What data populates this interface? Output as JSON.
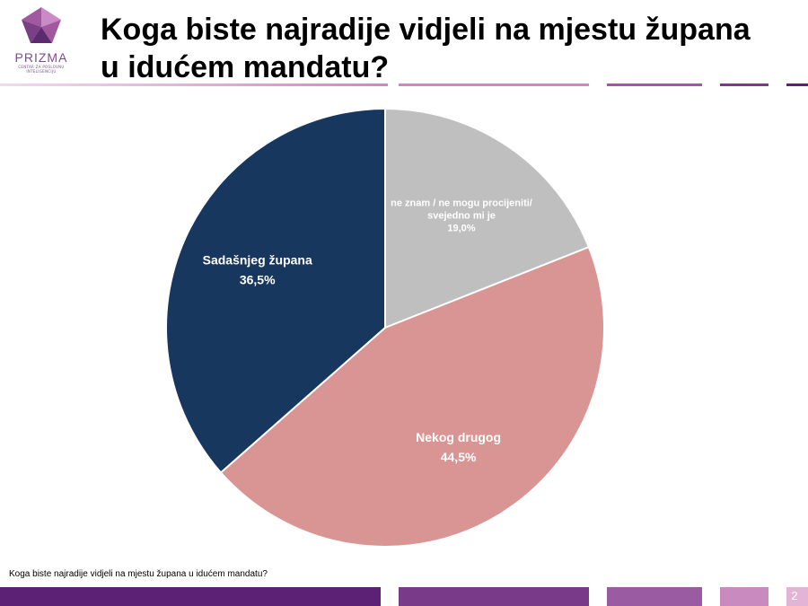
{
  "logo": {
    "name": "PRIZMA",
    "tagline": "CENTAR ZA POSLOVNU INTELIGENCIJU",
    "colors": [
      "#a2589e",
      "#7a3f86",
      "#c98ac5",
      "#5c2a6e"
    ]
  },
  "slide": {
    "title_line1": "Koga biste najradije vidjeli na mjestu župana",
    "title_line2": "u idućem mandatu?",
    "footnote": "Koga biste najradije vidjeli na mjestu župana u idućem mandatu?",
    "page_number": "2",
    "accent_colors": [
      "#5c2075",
      "#7a3a8a",
      "#9a5ba3",
      "#c98ac0"
    ]
  },
  "chart_data": {
    "type": "pie",
    "title": "",
    "start_angle_deg": 0,
    "direction": "clockwise",
    "slices": [
      {
        "label_lines": [
          "ne znam / ne mogu procijeniti/",
          "svejedno mi je"
        ],
        "value": 19.0,
        "value_label": "19,0%",
        "color": "#bfbfbf"
      },
      {
        "label_lines": [
          "Nekog drugog"
        ],
        "value": 44.5,
        "value_label": "44,5%",
        "color": "#d99594"
      },
      {
        "label_lines": [
          "Sadašnjeg župana"
        ],
        "value": 36.5,
        "value_label": "36,5%",
        "color": "#17375e"
      }
    ]
  }
}
